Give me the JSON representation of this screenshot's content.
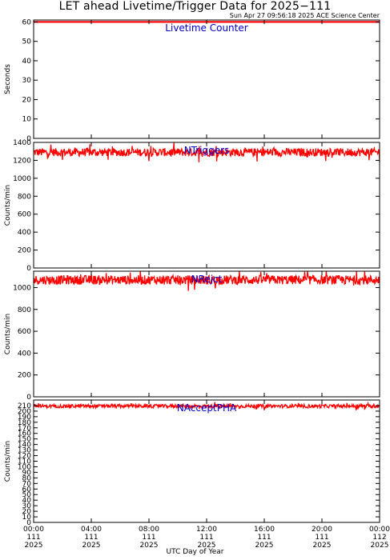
{
  "title": "LET ahead Livetime/Trigger Data for 2025−111",
  "subtitle": "Sun Apr 27 09:56:18 2025 ACE Science Center",
  "xlabel": "UTC Day of Year",
  "colors": {
    "data": "#ff0000",
    "panel_label": "#0000cc",
    "axes": "#000000"
  },
  "chart_data": [
    {
      "type": "line",
      "label": "Livetime Counter",
      "ylabel": "Seconds",
      "ylim": [
        0,
        61
      ],
      "yticks": [
        0,
        10,
        20,
        30,
        40,
        50,
        60
      ],
      "series": [
        {
          "mean": 60,
          "noise": 0
        }
      ]
    },
    {
      "type": "line",
      "label": "NTriggers",
      "ylabel": "Counts/min",
      "ylim": [
        0,
        1400
      ],
      "yticks": [
        0,
        200,
        400,
        600,
        800,
        1000,
        1200,
        1400
      ],
      "series": [
        {
          "mean": 1290,
          "noise": 45
        }
      ]
    },
    {
      "type": "line",
      "label": "NRejct",
      "ylabel": "Counts/min",
      "ylim": [
        0,
        1150
      ],
      "yticks": [
        0,
        200,
        400,
        600,
        800,
        1000
      ],
      "series": [
        {
          "mean": 1070,
          "noise": 42
        }
      ]
    },
    {
      "type": "line",
      "label": "NAcceptPHA",
      "ylabel": "Counts/min",
      "ylim": [
        0,
        220
      ],
      "yticks": [
        0,
        10,
        20,
        30,
        40,
        50,
        60,
        70,
        80,
        90,
        100,
        110,
        120,
        130,
        140,
        150,
        160,
        170,
        180,
        190,
        200,
        210
      ],
      "series": [
        {
          "mean": 209,
          "noise": 3
        }
      ]
    }
  ],
  "x_axis": {
    "range_hours": [
      0,
      24
    ],
    "ticks": [
      {
        "hours": 0,
        "time": "00:00",
        "doy": "111",
        "year": "2025"
      },
      {
        "hours": 4,
        "time": "04:00",
        "doy": "111",
        "year": "2025"
      },
      {
        "hours": 8,
        "time": "08:00",
        "doy": "111",
        "year": "2025"
      },
      {
        "hours": 12,
        "time": "12:00",
        "doy": "111",
        "year": "2025"
      },
      {
        "hours": 16,
        "time": "16:00",
        "doy": "111",
        "year": "2025"
      },
      {
        "hours": 20,
        "time": "20:00",
        "doy": "111",
        "year": "2025"
      },
      {
        "hours": 24,
        "time": "00:00",
        "doy": "112",
        "year": "2025"
      }
    ]
  }
}
